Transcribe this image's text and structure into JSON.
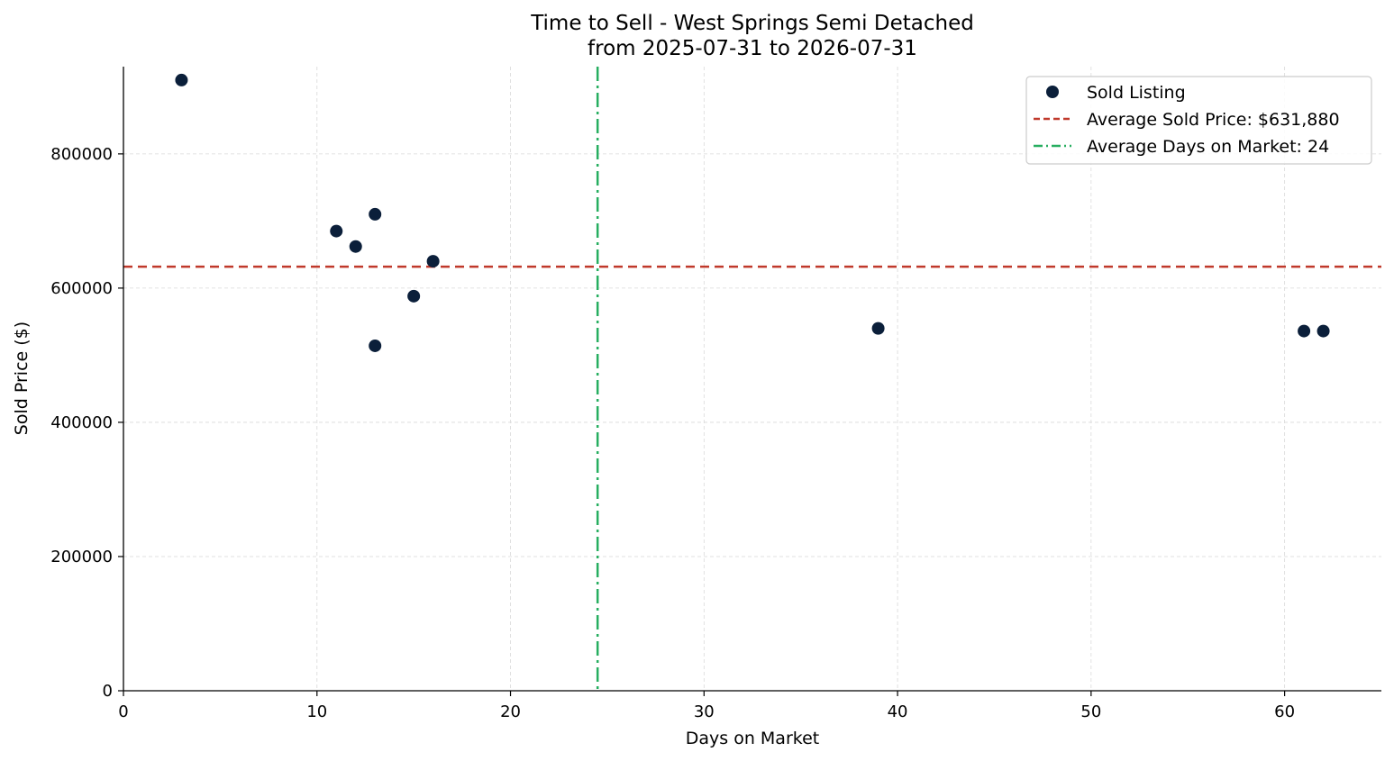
{
  "chart_data": {
    "type": "scatter",
    "title": "Time to Sell - West Springs Semi Detached",
    "subtitle": "from 2025-07-31 to 2026-07-31",
    "xlabel": "Days on Market",
    "ylabel": "Sold Price ($)",
    "xlim": [
      0,
      65
    ],
    "ylim": [
      0,
      930000
    ],
    "x_ticks": [
      0,
      10,
      20,
      30,
      40,
      50,
      60
    ],
    "y_ticks": [
      0,
      200000,
      400000,
      600000,
      800000
    ],
    "grid": true,
    "legend_position": "top-right",
    "series": [
      {
        "name": "Sold Listing",
        "color": "#0b1f3a",
        "points": [
          {
            "x": 3,
            "y": 910000
          },
          {
            "x": 11,
            "y": 685000
          },
          {
            "x": 12,
            "y": 662000
          },
          {
            "x": 13,
            "y": 710000
          },
          {
            "x": 13,
            "y": 514000
          },
          {
            "x": 15,
            "y": 588000
          },
          {
            "x": 16,
            "y": 640000
          },
          {
            "x": 39,
            "y": 540000
          },
          {
            "x": 61,
            "y": 536000
          },
          {
            "x": 62,
            "y": 536000
          }
        ]
      }
    ],
    "reference_lines": [
      {
        "name": "Average Sold Price: $631,880",
        "orientation": "horizontal",
        "value": 631880,
        "style": "dashed",
        "color": "#c0392b"
      },
      {
        "name": "Average Days on Market: 24",
        "orientation": "vertical",
        "value": 24.5,
        "style": "dashdot",
        "color": "#27ae60"
      }
    ]
  }
}
